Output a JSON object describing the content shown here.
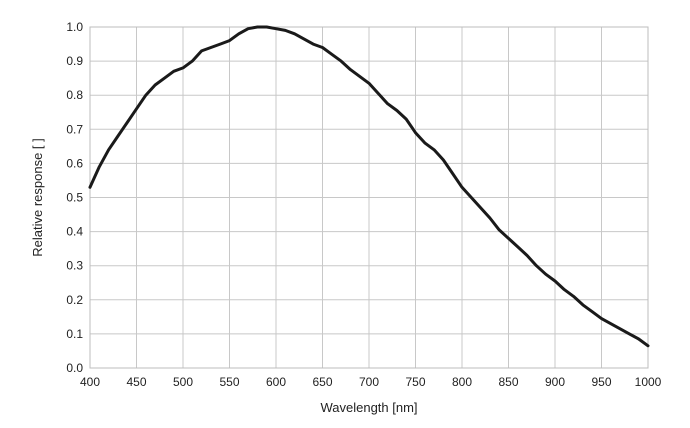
{
  "chart_data": {
    "type": "line",
    "title": "",
    "xlabel": "Wavelength [nm]",
    "ylabel": "Relative response [ ]",
    "xlim": [
      400,
      1000
    ],
    "ylim": [
      0.0,
      1.0
    ],
    "xticks": [
      400,
      450,
      500,
      550,
      600,
      650,
      700,
      750,
      800,
      850,
      900,
      950,
      1000
    ],
    "yticks": [
      0.0,
      0.1,
      0.2,
      0.3,
      0.4,
      0.5,
      0.6,
      0.7,
      0.8,
      0.9,
      1.0
    ],
    "xtick_labels": [
      "400",
      "450",
      "500",
      "550",
      "600",
      "650",
      "700",
      "750",
      "800",
      "850",
      "900",
      "950",
      "1000"
    ],
    "ytick_labels": [
      "0.0",
      "0.1",
      "0.2",
      "0.3",
      "0.4",
      "0.5",
      "0.6",
      "0.7",
      "0.8",
      "0.9",
      "1.0"
    ],
    "grid": true,
    "legend": "none",
    "line_color": "#1a1a1a",
    "grid_color": "#c8c8c8",
    "series": [
      {
        "x": [
          400,
          410,
          420,
          430,
          440,
          450,
          460,
          470,
          480,
          490,
          500,
          510,
          520,
          530,
          540,
          550,
          560,
          570,
          580,
          590,
          600,
          610,
          620,
          630,
          640,
          650,
          660,
          670,
          680,
          690,
          700,
          710,
          720,
          730,
          740,
          750,
          760,
          770,
          780,
          790,
          800,
          810,
          820,
          830,
          840,
          850,
          860,
          870,
          880,
          890,
          900,
          910,
          920,
          930,
          940,
          950,
          960,
          970,
          980,
          990,
          1000
        ],
        "y": [
          0.53,
          0.59,
          0.64,
          0.68,
          0.72,
          0.76,
          0.8,
          0.83,
          0.85,
          0.87,
          0.88,
          0.9,
          0.93,
          0.94,
          0.95,
          0.96,
          0.98,
          0.995,
          1.0,
          1.0,
          0.995,
          0.99,
          0.98,
          0.965,
          0.95,
          0.94,
          0.92,
          0.9,
          0.875,
          0.855,
          0.835,
          0.805,
          0.775,
          0.755,
          0.73,
          0.69,
          0.66,
          0.64,
          0.61,
          0.57,
          0.53,
          0.5,
          0.47,
          0.44,
          0.405,
          0.38,
          0.355,
          0.33,
          0.3,
          0.275,
          0.255,
          0.23,
          0.21,
          0.185,
          0.165,
          0.145,
          0.13,
          0.115,
          0.1,
          0.085,
          0.065
        ]
      }
    ]
  }
}
